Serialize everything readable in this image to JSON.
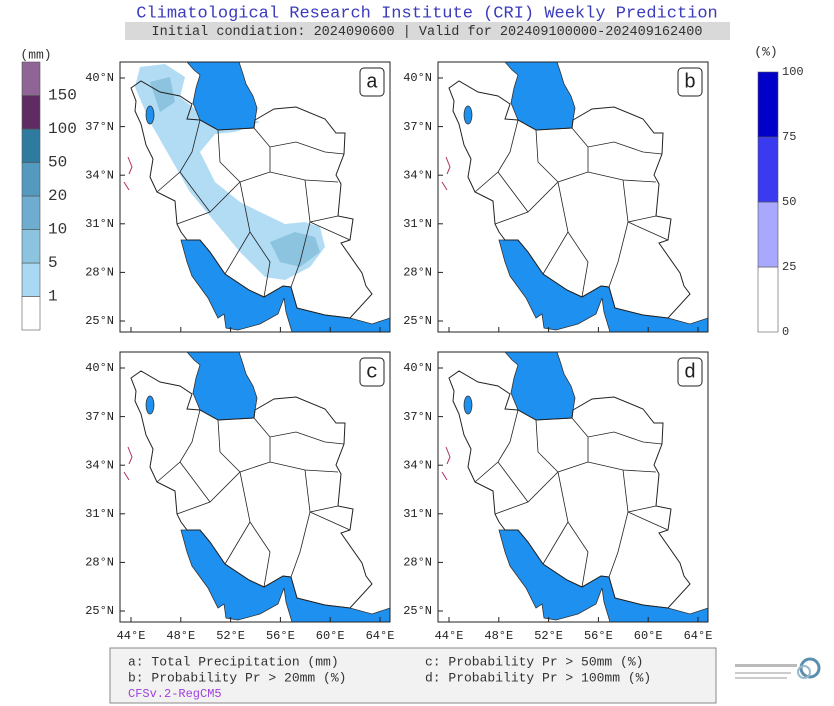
{
  "header": {
    "title": "Climatological Research Institute (CRI) Weekly Prediction",
    "subtitle": "Initial condiation: 2024090600 | Valid for 202409100000-202409162400"
  },
  "precip_legend": {
    "unit": "(mm)",
    "labels": [
      "1",
      "5",
      "10",
      "20",
      "50",
      "100",
      "150"
    ],
    "colors": [
      "#ffffff",
      "#a9d8f2",
      "#8cc3df",
      "#6fadd0",
      "#5499be",
      "#2f7b9f",
      "#5e2b62",
      "#8f6596"
    ]
  },
  "prob_legend": {
    "unit": "(%)",
    "labels": [
      "0",
      "25",
      "50",
      "75",
      "100"
    ],
    "colors": [
      "#ffffff",
      "#a8a8ff",
      "#3a3af0",
      "#0000c8"
    ]
  },
  "panels": [
    {
      "letter": "a"
    },
    {
      "letter": "b"
    },
    {
      "letter": "c"
    },
    {
      "letter": "d"
    }
  ],
  "lat_labels": [
    "40°N",
    "37°N",
    "34°N",
    "31°N",
    "28°N",
    "25°N"
  ],
  "lon_labels": [
    "44°E",
    "48°E",
    "52°E",
    "56°E",
    "60°E",
    "64°E"
  ],
  "footer": {
    "lines": [
      "a: Total Precipitation (mm)",
      "c: Probability Pr > 50mm (%)",
      "b: Probability Pr > 20mm (%)",
      "d: Probability Pr > 100mm (%)"
    ],
    "model": "CFSv.2-RegCM5"
  }
}
